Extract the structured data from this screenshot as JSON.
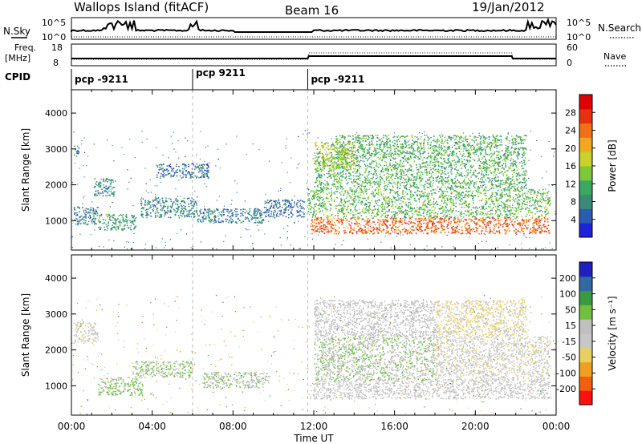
{
  "header": {
    "station": "Wallops Island (fitACF)",
    "beam": "Beam 16",
    "date": "19/Jan/2012"
  },
  "top_panels": {
    "nsky_label": "N.Sky",
    "nsky_ticks": [
      "10^5",
      "10^0"
    ],
    "nsearch_label": "N.Search",
    "nsearch_ticks": [
      "10^5",
      "10^0"
    ],
    "freq_label_1": "Freq.",
    "freq_label_2": "[MHz]",
    "freq_ticks": [
      "18",
      "8"
    ],
    "nave_label": "Nave",
    "nave_ticks": [
      "60",
      "0"
    ],
    "cpid_label": "CPID",
    "cpid_segments": [
      {
        "label": "pcp -9211",
        "start_hour": 0.0
      },
      {
        "label": "pcp 9211",
        "start_hour": 6.0
      },
      {
        "label": "pcp -9211",
        "start_hour": 11.7
      }
    ]
  },
  "colors": {
    "power_scale": [
      "#1e22d8",
      "#2a5cb0",
      "#3a8a7a",
      "#3aa860",
      "#7cc83a",
      "#c8d22a",
      "#f0a820",
      "#f07018",
      "#e83010",
      "#e00000"
    ],
    "velocity_scale": [
      "#ff1010",
      "#f06010",
      "#f0a020",
      "#e8d060",
      "#c8c8c8",
      "#c0c0c0",
      "#70c040",
      "#3a9a40",
      "#306aa0",
      "#2020c0"
    ]
  },
  "chart_data": [
    {
      "type": "heatmap",
      "title": "",
      "xlabel": "",
      "ylabel": "Slant Range [km]",
      "xlim": [
        0,
        24
      ],
      "ylim": [
        180,
        4650
      ],
      "y_ticks": [
        "1000",
        "2000",
        "3000",
        "4000"
      ],
      "colorbar_label": "Power [dB]",
      "colorbar_ticks": [
        "4",
        "8",
        "12",
        "16",
        "20",
        "24",
        "28"
      ],
      "colorbar_range": [
        0,
        32
      ],
      "regions": [
        {
          "t0": 0.1,
          "t1": 0.4,
          "r0": 2800,
          "r1": 3100,
          "power": 6
        },
        {
          "t0": 0.1,
          "t1": 1.3,
          "r0": 900,
          "r1": 1400,
          "power": 7
        },
        {
          "t0": 1.1,
          "t1": 2.2,
          "r0": 1700,
          "r1": 2200,
          "power": 9
        },
        {
          "t0": 1.3,
          "t1": 3.2,
          "r0": 750,
          "r1": 1200,
          "power": 10
        },
        {
          "t0": 3.4,
          "t1": 6.2,
          "r0": 1100,
          "r1": 1650,
          "power": 8
        },
        {
          "t0": 4.2,
          "t1": 6.8,
          "r0": 2200,
          "r1": 2600,
          "power": 6
        },
        {
          "t0": 6.2,
          "t1": 9.5,
          "r0": 950,
          "r1": 1350,
          "power": 7
        },
        {
          "t0": 9.5,
          "t1": 11.5,
          "r0": 1100,
          "r1": 1600,
          "power": 6
        },
        {
          "t0": 11.8,
          "t1": 23.7,
          "r0": 650,
          "r1": 1100,
          "power": 25
        },
        {
          "t0": 11.7,
          "t1": 23.7,
          "r0": 1100,
          "r1": 1900,
          "power": 13
        },
        {
          "t0": 12.0,
          "t1": 22.5,
          "r0": 1900,
          "r1": 2800,
          "power": 12
        },
        {
          "t0": 13.0,
          "t1": 22.5,
          "r0": 2800,
          "r1": 3400,
          "power": 12
        },
        {
          "t0": 12.0,
          "t1": 14.0,
          "r0": 2400,
          "r1": 3200,
          "power": 16
        }
      ]
    },
    {
      "type": "heatmap",
      "title": "",
      "xlabel": "Time UT",
      "ylabel": "Slant Range [km]",
      "xlim": [
        0,
        24
      ],
      "ylim": [
        180,
        4650
      ],
      "x_ticks": [
        "00:00",
        "04:00",
        "08:00",
        "12:00",
        "16:00",
        "20:00",
        "00:00"
      ],
      "y_ticks": [
        "1000",
        "2000",
        "3000",
        "4000"
      ],
      "colorbar_label": "Velocity [m s⁻¹]",
      "colorbar_ticks": [
        "200",
        "100",
        "50",
        "15",
        "-15",
        "-50",
        "-100",
        "-200"
      ],
      "colorbar_range": [
        -250,
        250
      ],
      "regions": [
        {
          "t0": 0.1,
          "t1": 1.3,
          "r0": 2200,
          "r1": 2800,
          "velocity": -30
        },
        {
          "t0": 1.3,
          "t1": 3.5,
          "r0": 750,
          "r1": 1250,
          "velocity": 60
        },
        {
          "t0": 3.0,
          "t1": 6.0,
          "r0": 1250,
          "r1": 1700,
          "velocity": 50
        },
        {
          "t0": 6.5,
          "t1": 9.8,
          "r0": 950,
          "r1": 1400,
          "velocity": 40
        },
        {
          "t0": 11.8,
          "t1": 23.7,
          "r0": 650,
          "r1": 1150,
          "velocity": 0
        },
        {
          "t0": 12.0,
          "t1": 18.0,
          "r0": 1150,
          "r1": 2400,
          "velocity": 40
        },
        {
          "t0": 18.0,
          "t1": 23.7,
          "r0": 1150,
          "r1": 2400,
          "velocity": -30
        },
        {
          "t0": 12.0,
          "t1": 18.0,
          "r0": 2400,
          "r1": 3400,
          "velocity": 20
        },
        {
          "t0": 18.0,
          "t1": 22.5,
          "r0": 2400,
          "r1": 3400,
          "velocity": -50
        }
      ]
    }
  ]
}
